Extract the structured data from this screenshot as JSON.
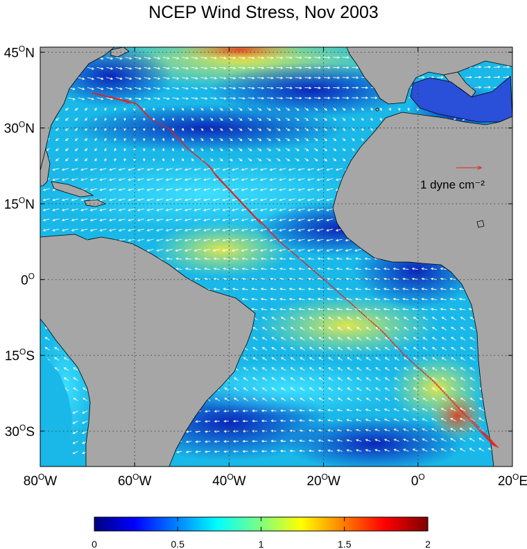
{
  "title": "NCEP Wind Stress, Nov 2003",
  "colors": {
    "ocean_low": "#0a1fa8",
    "ocean_mid": "#19b8e8",
    "ocean_high": "#f5e027",
    "land": "#a6a6a6",
    "vectors": "#ffffff",
    "track": "#e61e1e"
  },
  "map": {
    "lon_range": [
      -80,
      20
    ],
    "lat_range": [
      -37,
      46
    ],
    "lon_ticks": [
      {
        "value": -80,
        "label": "80°W"
      },
      {
        "value": -60,
        "label": "60°W"
      },
      {
        "value": -40,
        "label": "40°W"
      },
      {
        "value": -20,
        "label": "20°W"
      },
      {
        "value": 0,
        "label": "0°"
      },
      {
        "value": 20,
        "label": "20°E"
      }
    ],
    "lat_ticks": [
      {
        "value": 45,
        "label": "45°N"
      },
      {
        "value": 30,
        "label": "30°N"
      },
      {
        "value": 15,
        "label": "15°N"
      },
      {
        "value": 0,
        "label": "0°"
      },
      {
        "value": -15,
        "label": "15°S"
      },
      {
        "value": -30,
        "label": "30°S"
      }
    ],
    "grid": "dotted",
    "scale_vector": {
      "label": "1 dyne cm⁻²",
      "magnitude": 1
    }
  },
  "colorbar": {
    "range": [
      0,
      2
    ],
    "ticks": [
      {
        "value": 0,
        "label": "0"
      },
      {
        "value": 0.5,
        "label": "0.5"
      },
      {
        "value": 1,
        "label": "1"
      },
      {
        "value": 1.5,
        "label": "1.5"
      },
      {
        "value": 2,
        "label": "2"
      }
    ],
    "colormap": "jet"
  },
  "track": {
    "description_hidden": "",
    "points_lonlat": [
      [
        -69,
        37
      ],
      [
        -64,
        36
      ],
      [
        -60,
        35
      ],
      [
        -57,
        32
      ],
      [
        -53,
        30
      ],
      [
        -49,
        26
      ],
      [
        -45,
        23
      ],
      [
        -42,
        20
      ],
      [
        -38,
        16
      ],
      [
        -34,
        12
      ],
      [
        -30,
        8
      ],
      [
        -25,
        4
      ],
      [
        -20,
        0
      ],
      [
        -14,
        -5
      ],
      [
        -8,
        -10
      ],
      [
        -3,
        -15
      ],
      [
        3,
        -20
      ],
      [
        8,
        -25
      ],
      [
        13,
        -30
      ],
      [
        16,
        -33
      ]
    ]
  }
}
